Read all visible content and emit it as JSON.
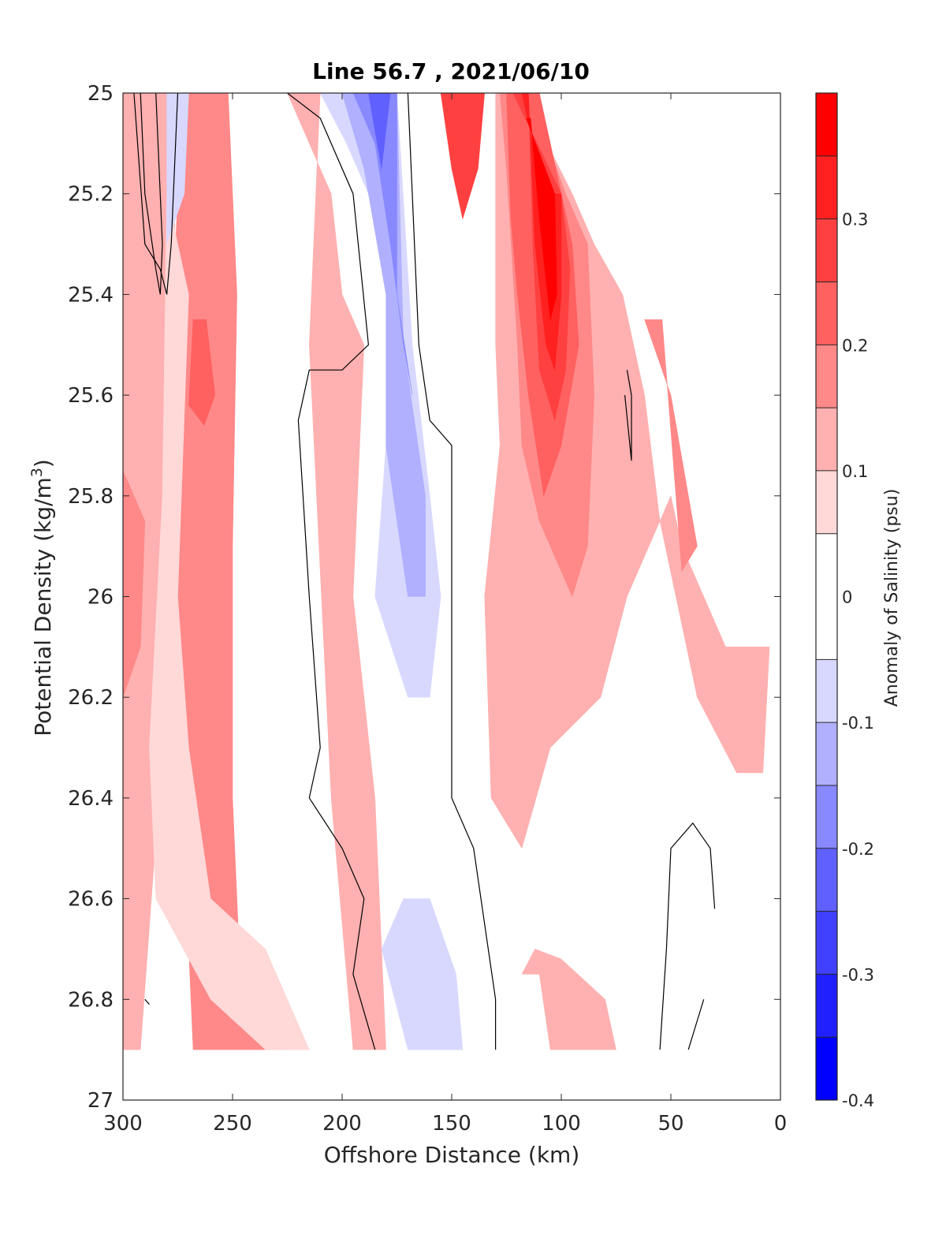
{
  "chart_data": {
    "type": "heatmap",
    "subtype": "filled-contour",
    "title": "Line 56.7 , 2021/06/10",
    "xlabel": "Offshore Distance (km)",
    "ylabel_main": "Potential Density (kg/m",
    "ylabel_sup": "3",
    "ylabel_close": ")",
    "xlim": [
      300,
      0
    ],
    "ylim": [
      25,
      27
    ],
    "x_reversed": true,
    "y_reversed": true,
    "xticks": [
      300,
      250,
      200,
      150,
      100,
      50,
      0
    ],
    "xtick_labels": [
      "300",
      "250",
      "200",
      "150",
      "100",
      "50",
      "0"
    ],
    "yticks": [
      25,
      25.2,
      25.4,
      25.6,
      25.8,
      26,
      26.2,
      26.4,
      26.6,
      26.8,
      27
    ],
    "ytick_labels": [
      "25",
      "25.2",
      "25.4",
      "25.6",
      "25.8",
      "26",
      "26.2",
      "26.4",
      "26.6",
      "26.8",
      "27"
    ],
    "data_extent": {
      "x": [
        5,
        300
      ],
      "y": [
        25,
        26.9
      ]
    },
    "colorbar": {
      "label": "Anomaly of Salinity (psu)",
      "limits": [
        -0.4,
        0.4
      ],
      "levels": [
        -0.4,
        -0.35,
        -0.3,
        -0.25,
        -0.2,
        -0.15,
        -0.1,
        -0.05,
        0.05,
        0.1,
        0.15,
        0.2,
        0.25,
        0.3,
        0.35,
        0.4
      ],
      "colors": [
        "#0000ff",
        "#2020ff",
        "#4040ff",
        "#6060ff",
        "#8888ff",
        "#b0b0ff",
        "#d8d8ff",
        "#ffffff",
        "#ffd8d8",
        "#ffb0b0",
        "#ff8888",
        "#ff6060",
        "#ff4040",
        "#ff2020",
        "#ff0000"
      ],
      "ticks": [
        -0.4,
        -0.3,
        -0.2,
        -0.1,
        0,
        0.1,
        0.2,
        0.3
      ],
      "tick_labels": [
        "-0.4",
        "-0.3",
        "-0.2",
        "-0.1",
        "0",
        "0.1",
        "0.2",
        "0.3"
      ]
    },
    "contour_line": {
      "level": -0.05,
      "color": "#000000"
    },
    "regions": [
      {
        "level": 0.1,
        "points": [
          [
            295,
            25
          ],
          [
            278,
            25
          ],
          [
            275,
            25.5
          ],
          [
            282,
            26.3
          ],
          [
            292,
            26.9
          ],
          [
            300,
            26.9
          ],
          [
            300,
            25
          ]
        ]
      },
      {
        "level": 0.1,
        "points": [
          [
            240,
            25
          ],
          [
            210,
            25
          ],
          [
            215,
            25.5
          ],
          [
            205,
            26.4
          ],
          [
            195,
            26.9
          ],
          [
            180,
            26.9
          ],
          [
            185,
            26.4
          ],
          [
            195,
            26.0
          ],
          [
            190,
            25.5
          ],
          [
            200,
            25.4
          ],
          [
            205,
            25.2
          ],
          [
            225,
            25
          ]
        ]
      },
      {
        "level": 0.15,
        "points": [
          [
            270,
            25
          ],
          [
            252,
            25
          ],
          [
            248,
            25.4
          ],
          [
            250,
            25.9
          ],
          [
            250,
            26.4
          ],
          [
            245,
            26.9
          ],
          [
            268,
            26.9
          ],
          [
            272,
            26.5
          ],
          [
            278,
            26.2
          ],
          [
            283,
            25.9
          ],
          [
            278,
            25.5
          ],
          [
            275,
            25.2
          ]
        ]
      },
      {
        "level": 0.2,
        "points": [
          [
            268,
            25.45
          ],
          [
            262,
            25.45
          ],
          [
            258,
            25.6
          ],
          [
            263,
            25.66
          ],
          [
            270,
            25.62
          ]
        ]
      },
      {
        "level": 0.15,
        "points": [
          [
            300,
            25.75
          ],
          [
            290,
            25.85
          ],
          [
            292,
            26.1
          ],
          [
            300,
            26.2
          ]
        ]
      },
      {
        "level": 0.15,
        "points": [
          [
            275,
            26.55
          ],
          [
            255,
            26.55
          ],
          [
            245,
            26.9
          ],
          [
            228,
            26.9
          ],
          [
            232,
            26.75
          ],
          [
            250,
            26.65
          ],
          [
            270,
            26.65
          ]
        ]
      },
      {
        "level": 0.1,
        "points": [
          [
            170,
            25
          ],
          [
            130,
            25
          ],
          [
            130,
            25.5
          ],
          [
            128,
            25.7
          ],
          [
            135,
            26.0
          ],
          [
            132,
            26.4
          ],
          [
            118,
            26.5
          ],
          [
            105,
            26.3
          ],
          [
            82,
            26.2
          ],
          [
            70,
            26.0
          ],
          [
            50,
            25.8
          ],
          [
            45,
            25.9
          ],
          [
            35,
            26.0
          ],
          [
            25,
            26.1
          ],
          [
            5,
            26.1
          ],
          [
            8,
            26.35
          ],
          [
            20,
            26.35
          ],
          [
            38,
            26.2
          ],
          [
            55,
            25.85
          ],
          [
            62,
            25.6
          ],
          [
            72,
            25.4
          ],
          [
            85,
            25.3
          ],
          [
            95,
            25.2
          ],
          [
            118,
            25
          ]
        ]
      },
      {
        "level": 0.15,
        "points": [
          [
            165,
            25
          ],
          [
            128,
            25
          ],
          [
            125,
            25.15
          ],
          [
            120,
            25.5
          ],
          [
            118,
            25.7
          ],
          [
            110,
            25.85
          ],
          [
            95,
            26.0
          ],
          [
            88,
            25.9
          ],
          [
            85,
            25.6
          ],
          [
            88,
            25.3
          ],
          [
            98,
            25.2
          ],
          [
            115,
            25
          ]
        ]
      },
      {
        "level": 0.15,
        "points": [
          [
            62,
            25.45
          ],
          [
            54,
            25.45
          ],
          [
            45,
            25.95
          ],
          [
            38,
            25.9
          ],
          [
            50,
            25.6
          ]
        ]
      },
      {
        "level": 0.2,
        "points": [
          [
            160,
            25
          ],
          [
            125,
            25
          ],
          [
            123,
            25.25
          ],
          [
            120,
            25.4
          ],
          [
            115,
            25.6
          ],
          [
            108,
            25.8
          ],
          [
            100,
            25.7
          ],
          [
            92,
            25.5
          ],
          [
            95,
            25.3
          ],
          [
            110,
            25
          ]
        ]
      },
      {
        "level": 0.25,
        "points": [
          [
            155,
            25
          ],
          [
            135,
            25
          ],
          [
            138,
            25.15
          ],
          [
            145,
            25.25
          ],
          [
            150,
            25.15
          ]
        ]
      },
      {
        "level": 0.25,
        "points": [
          [
            122,
            25
          ],
          [
            115,
            25
          ],
          [
            113,
            25.3
          ],
          [
            110,
            25.55
          ],
          [
            103,
            25.65
          ],
          [
            98,
            25.55
          ],
          [
            96,
            25.35
          ],
          [
            100,
            25.2
          ]
        ]
      },
      {
        "level": 0.3,
        "points": [
          [
            118,
            25
          ],
          [
            115,
            25
          ],
          [
            112,
            25.3
          ],
          [
            107,
            25.5
          ],
          [
            103,
            25.55
          ],
          [
            100,
            25.4
          ],
          [
            100,
            25.2
          ],
          [
            108,
            25.2
          ]
        ]
      },
      {
        "level": 0.35,
        "points": [
          [
            116,
            25.05
          ],
          [
            114,
            25.05
          ],
          [
            110,
            25.25
          ],
          [
            105,
            25.45
          ],
          [
            102,
            25.4
          ],
          [
            103,
            25.2
          ]
        ]
      },
      {
        "level": 0.05,
        "points": [
          [
            280,
            25.2
          ],
          [
            270,
            25.4
          ],
          [
            275,
            26.0
          ],
          [
            270,
            26.3
          ],
          [
            260,
            26.6
          ],
          [
            235,
            26.7
          ],
          [
            215,
            26.9
          ],
          [
            235,
            26.9
          ],
          [
            260,
            26.8
          ],
          [
            285,
            26.6
          ],
          [
            288,
            26.3
          ],
          [
            282,
            25.8
          ]
        ]
      },
      {
        "level": 0.1,
        "points": [
          [
            118,
            26.75
          ],
          [
            110,
            26.75
          ],
          [
            105,
            26.9
          ],
          [
            75,
            26.9
          ],
          [
            80,
            26.8
          ],
          [
            100,
            26.72
          ],
          [
            112,
            26.7
          ]
        ]
      },
      {
        "level": -0.1,
        "points": [
          [
            280,
            25
          ],
          [
            270,
            25
          ],
          [
            272,
            25.2
          ],
          [
            280,
            25.3
          ]
        ]
      },
      {
        "level": -0.1,
        "points": [
          [
            210,
            25
          ],
          [
            175,
            25
          ],
          [
            168,
            25.5
          ],
          [
            160,
            25.8
          ],
          [
            155,
            26.0
          ],
          [
            160,
            26.2
          ],
          [
            170,
            26.2
          ],
          [
            185,
            26.0
          ],
          [
            180,
            25.7
          ],
          [
            178,
            25.4
          ],
          [
            188,
            25.2
          ],
          [
            198,
            25.1
          ]
        ]
      },
      {
        "level": -0.1,
        "points": [
          [
            172,
            26.6
          ],
          [
            160,
            26.6
          ],
          [
            148,
            26.75
          ],
          [
            145,
            26.9
          ],
          [
            170,
            26.9
          ],
          [
            182,
            26.7
          ]
        ]
      },
      {
        "level": -0.15,
        "points": [
          [
            200,
            25
          ],
          [
            175,
            25
          ],
          [
            172,
            25.5
          ],
          [
            162,
            25.8
          ],
          [
            162,
            26.0
          ],
          [
            170,
            26.0
          ],
          [
            180,
            25.7
          ],
          [
            180,
            25.4
          ],
          [
            190,
            25.15
          ]
        ]
      },
      {
        "level": -0.2,
        "points": [
          [
            195,
            25
          ],
          [
            175,
            25
          ],
          [
            175,
            25.4
          ],
          [
            168,
            25.6
          ],
          [
            172,
            25.5
          ],
          [
            178,
            25.3
          ],
          [
            185,
            25.1
          ]
        ]
      },
      {
        "level": -0.25,
        "points": [
          [
            188,
            25
          ],
          [
            178,
            25
          ],
          [
            182,
            25.15
          ],
          [
            186,
            25.05
          ]
        ]
      }
    ],
    "contours": [
      [
        [
          285,
          25
        ],
        [
          282,
          25.3
        ],
        [
          283,
          25.4
        ],
        [
          285,
          25.35
        ],
        [
          290,
          25.2
        ],
        [
          292,
          25
        ]
      ],
      [
        [
          275,
          25
        ],
        [
          278,
          25.3
        ],
        [
          280,
          25.4
        ],
        [
          283,
          25.35
        ],
        [
          290,
          25.3
        ],
        [
          295,
          25
        ]
      ],
      [
        [
          225,
          25
        ],
        [
          210,
          25.05
        ],
        [
          195,
          25.2
        ],
        [
          188,
          25.5
        ],
        [
          200,
          25.55
        ],
        [
          215,
          25.55
        ],
        [
          220,
          25.65
        ],
        [
          215,
          26.0
        ],
        [
          210,
          26.3
        ],
        [
          215,
          26.4
        ],
        [
          200,
          26.5
        ],
        [
          190,
          26.6
        ],
        [
          195,
          26.75
        ],
        [
          185,
          26.9
        ]
      ],
      [
        [
          170,
          25
        ],
        [
          165,
          25.5
        ],
        [
          160,
          25.65
        ],
        [
          150,
          25.7
        ],
        [
          150,
          26.1
        ],
        [
          150,
          26.4
        ],
        [
          140,
          26.5
        ],
        [
          130,
          26.8
        ],
        [
          130,
          26.9
        ]
      ],
      [
        [
          70,
          25.55
        ],
        [
          68,
          25.6
        ],
        [
          68,
          25.73
        ],
        [
          71,
          25.6
        ]
      ],
      [
        [
          55,
          26.9
        ],
        [
          52,
          26.7
        ],
        [
          50,
          26.5
        ],
        [
          40,
          26.45
        ],
        [
          32,
          26.5
        ],
        [
          30,
          26.62
        ]
      ],
      [
        [
          42,
          26.9
        ],
        [
          35,
          26.8
        ]
      ],
      [
        [
          290,
          26.8
        ],
        [
          288,
          26.81
        ]
      ]
    ]
  }
}
